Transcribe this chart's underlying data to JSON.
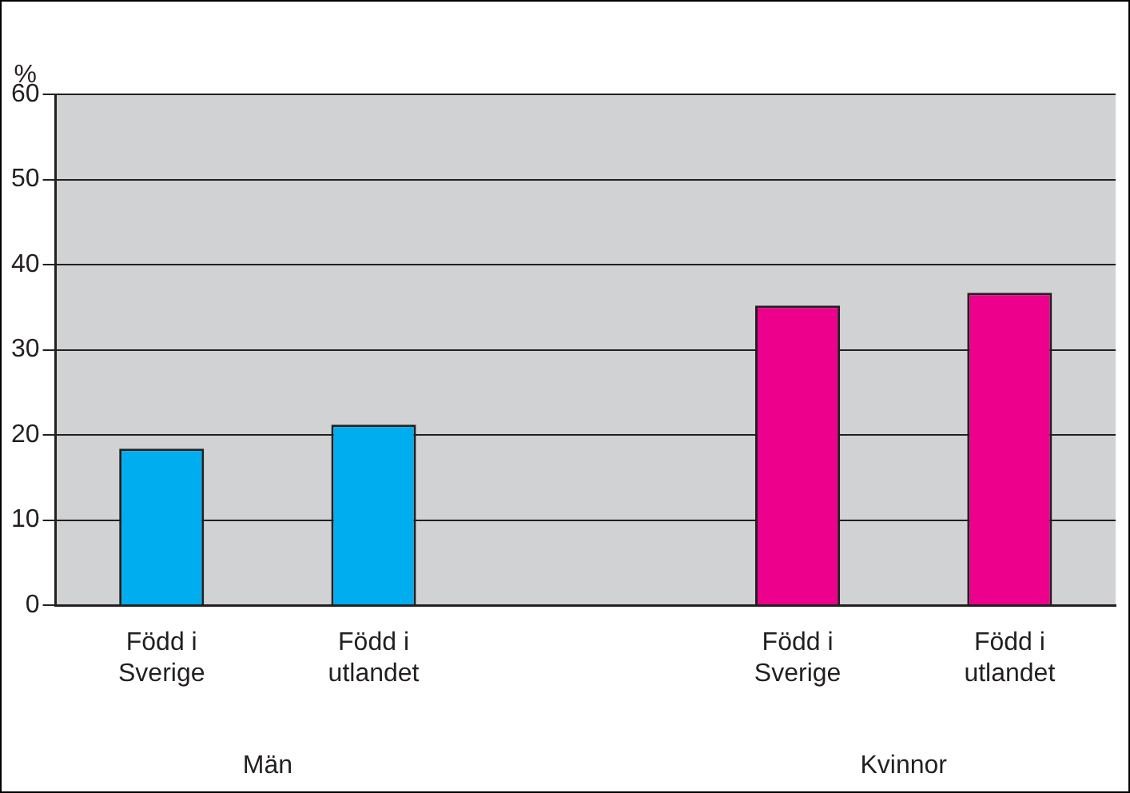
{
  "chart_data": {
    "type": "bar",
    "ylabel": "%",
    "categories": [
      "Född i Sverige",
      "Född i utlandet",
      null,
      "Född i Sverige",
      "Född i utlandet"
    ],
    "values": [
      18.4,
      21.2,
      null,
      35.2,
      36.7
    ],
    "colors": [
      "#00adef",
      "#00adef",
      "#00adef",
      "#ec008c",
      "#ec008c"
    ],
    "ylim": [
      0,
      60
    ],
    "yticks": [
      0,
      10,
      20,
      30,
      40,
      50,
      60
    ],
    "grid": "y",
    "legend": false,
    "annotations": [
      "Män",
      "Kvinnor"
    ]
  }
}
